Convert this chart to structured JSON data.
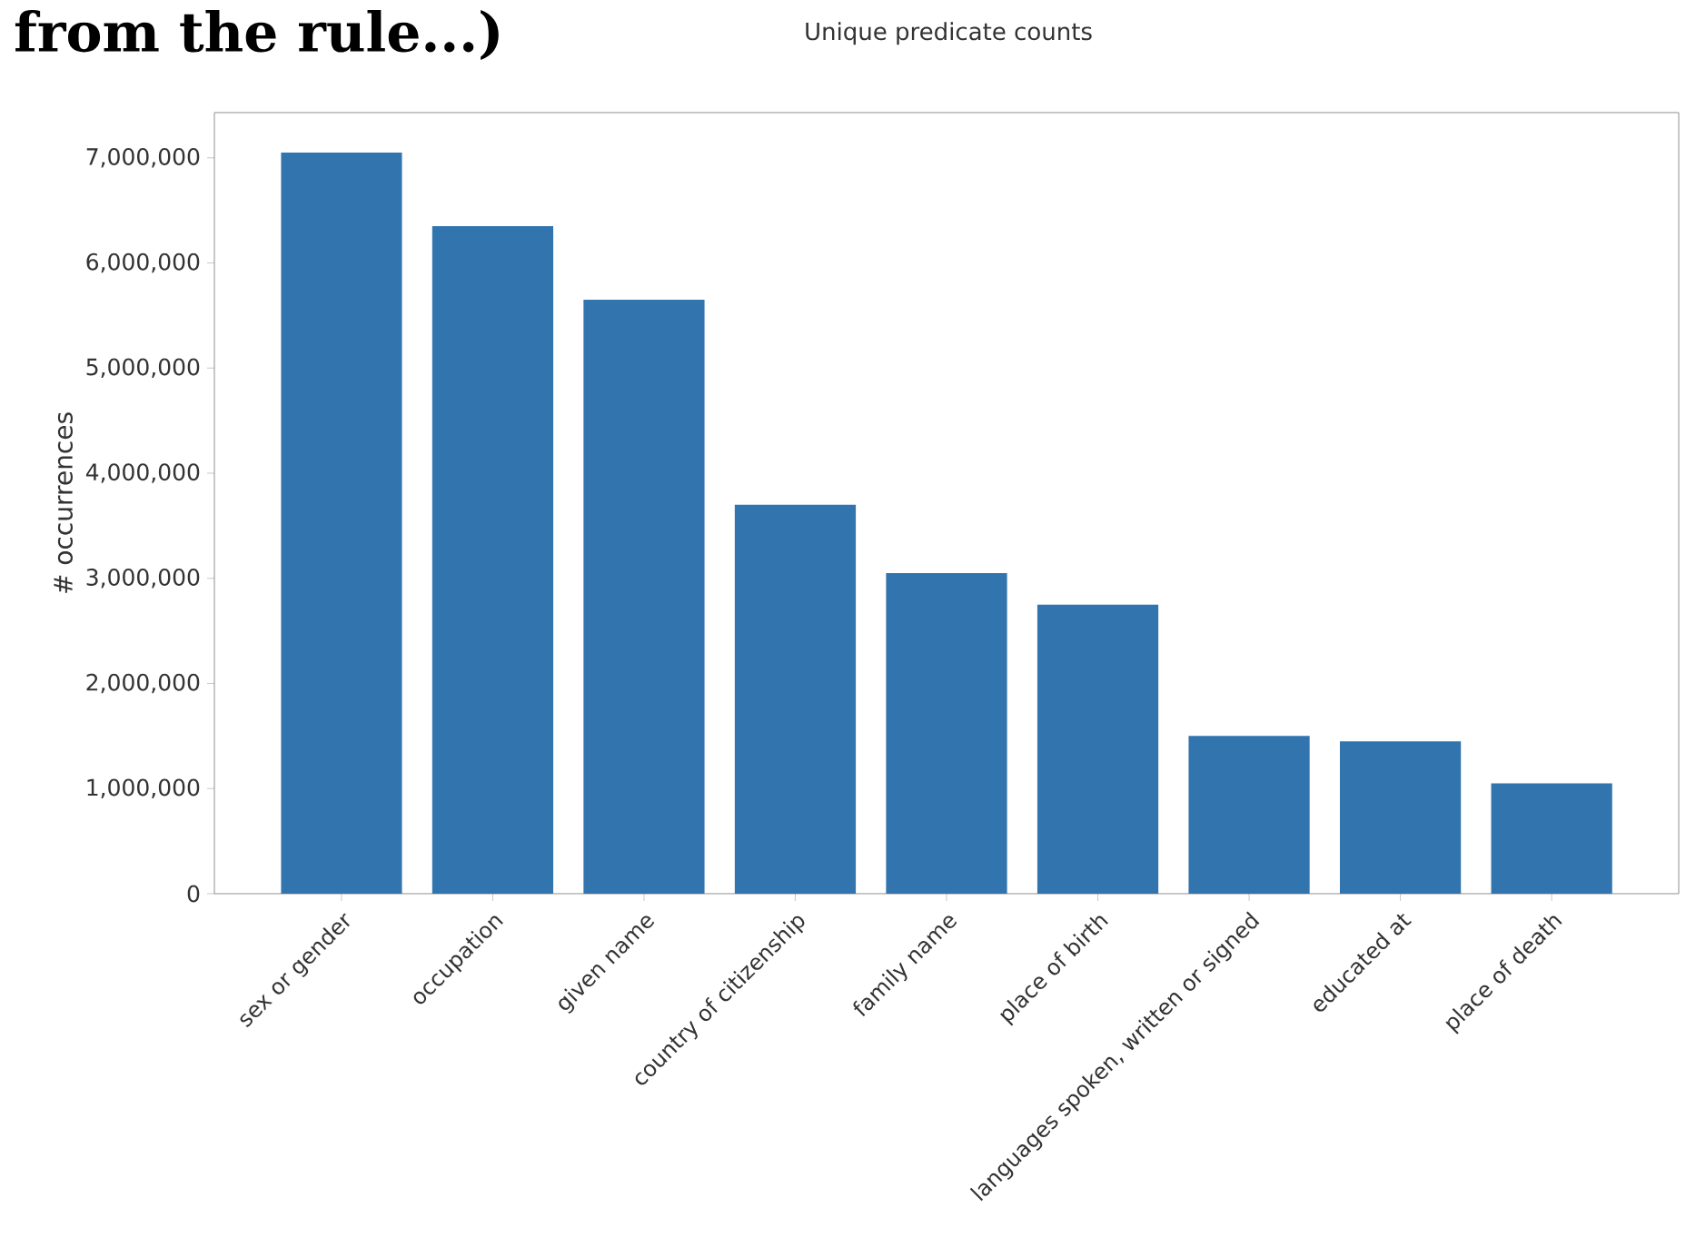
{
  "chart_data": {
    "type": "bar",
    "title": "Unique predicate counts",
    "ylabel": "# occurrences",
    "annotations": [
      "from the rule...)"
    ],
    "categories": [
      "sex or gender",
      "occupation",
      "given name",
      "country of citizenship",
      "family name",
      "place of birth",
      "languages spoken, written or signed",
      "educated at",
      "place of death"
    ],
    "values": [
      7050000,
      6350000,
      5650000,
      3700000,
      3050000,
      2750000,
      1500000,
      1450000,
      1050000
    ],
    "color": "#3274ad",
    "ylim": [
      0,
      7430000
    ],
    "yticks": [
      {
        "value": 0,
        "label": "0"
      },
      {
        "value": 1000000,
        "label": "1,000,000"
      },
      {
        "value": 2000000,
        "label": "2,000,000"
      },
      {
        "value": 3000000,
        "label": "3,000,000"
      },
      {
        "value": 4000000,
        "label": "4,000,000"
      },
      {
        "value": 5000000,
        "label": "5,000,000"
      },
      {
        "value": 6000000,
        "label": "6,000,000"
      },
      {
        "value": 7000000,
        "label": "7,000,000"
      }
    ],
    "grid": false
  }
}
